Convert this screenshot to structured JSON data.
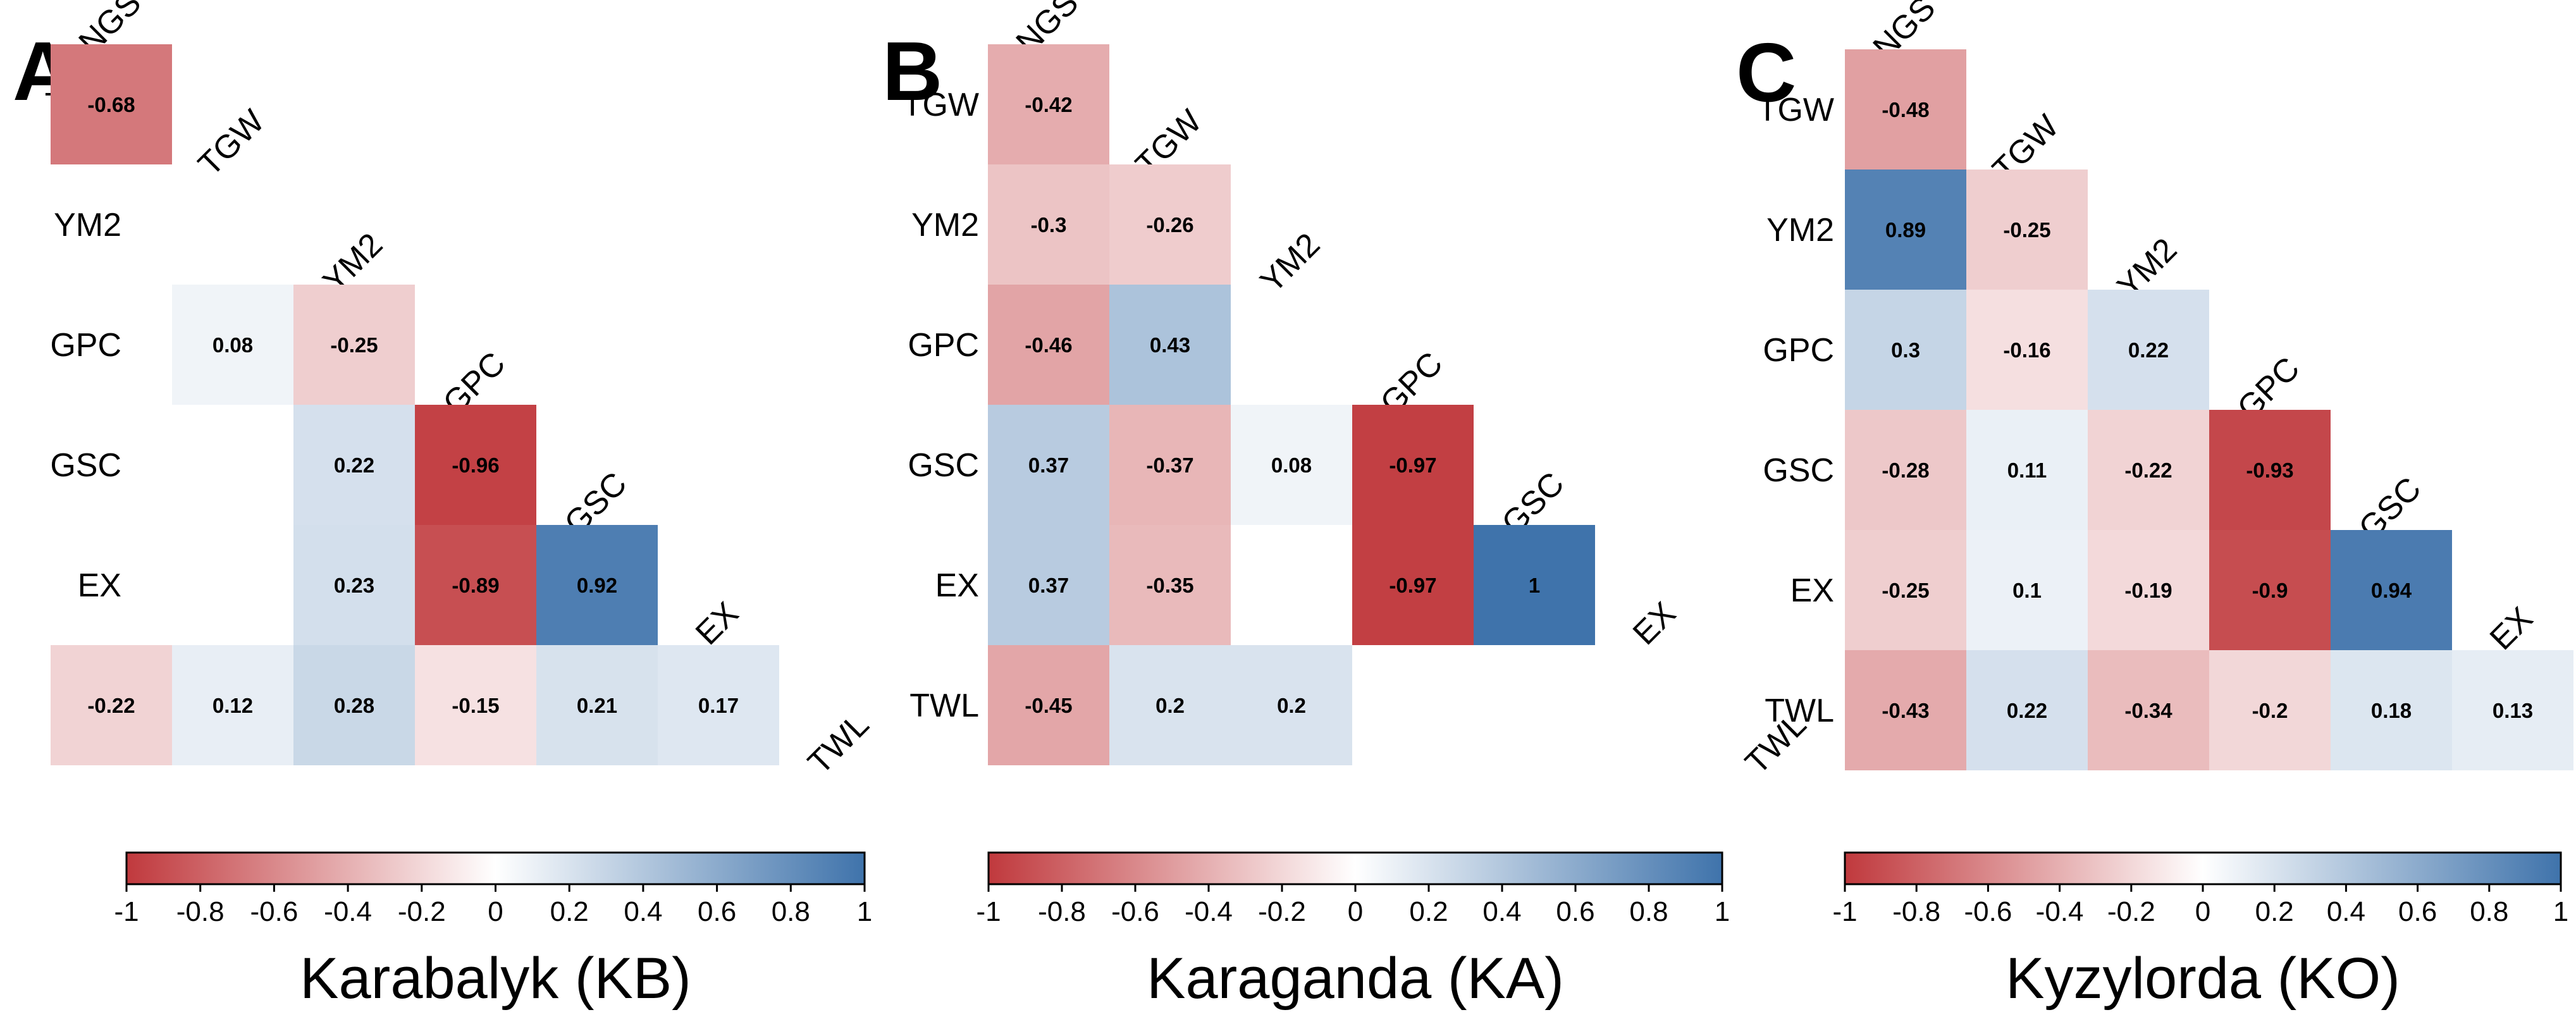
{
  "chart_data": [
    {
      "type": "heatmap",
      "panel_label": "A",
      "title": "Karabalyk (KB)",
      "variables": [
        "NGS",
        "TGW",
        "YM2",
        "GPC",
        "GSC",
        "EX",
        "TWL"
      ],
      "cells": [
        {
          "row": "TGW",
          "col": "NGS",
          "value": -0.68
        },
        {
          "row": "GPC",
          "col": "TGW",
          "value": 0.08
        },
        {
          "row": "GPC",
          "col": "YM2",
          "value": -0.25
        },
        {
          "row": "GSC",
          "col": "YM2",
          "value": 0.22
        },
        {
          "row": "GSC",
          "col": "GPC",
          "value": -0.96
        },
        {
          "row": "EX",
          "col": "YM2",
          "value": 0.23
        },
        {
          "row": "EX",
          "col": "GPC",
          "value": -0.89
        },
        {
          "row": "EX",
          "col": "GSC",
          "value": 0.92
        },
        {
          "row": "TWL",
          "col": "NGS",
          "value": -0.22
        },
        {
          "row": "TWL",
          "col": "TGW",
          "value": 0.12
        },
        {
          "row": "TWL",
          "col": "YM2",
          "value": 0.28
        },
        {
          "row": "TWL",
          "col": "GPC",
          "value": -0.15
        },
        {
          "row": "TWL",
          "col": "GSC",
          "value": 0.21
        },
        {
          "row": "TWL",
          "col": "EX",
          "value": 0.17
        }
      ]
    },
    {
      "type": "heatmap",
      "panel_label": "B",
      "title": "Karaganda (KA)",
      "variables": [
        "NGS",
        "TGW",
        "YM2",
        "GPC",
        "GSC",
        "EX",
        "TWL"
      ],
      "cells": [
        {
          "row": "TGW",
          "col": "NGS",
          "value": -0.42
        },
        {
          "row": "YM2",
          "col": "NGS",
          "value": -0.3
        },
        {
          "row": "YM2",
          "col": "TGW",
          "value": -0.26
        },
        {
          "row": "GPC",
          "col": "NGS",
          "value": -0.46
        },
        {
          "row": "GPC",
          "col": "TGW",
          "value": 0.43
        },
        {
          "row": "GSC",
          "col": "NGS",
          "value": 0.37
        },
        {
          "row": "GSC",
          "col": "TGW",
          "value": -0.37
        },
        {
          "row": "GSC",
          "col": "YM2",
          "value": 0.08
        },
        {
          "row": "GSC",
          "col": "GPC",
          "value": -0.97
        },
        {
          "row": "EX",
          "col": "NGS",
          "value": 0.37
        },
        {
          "row": "EX",
          "col": "TGW",
          "value": -0.35
        },
        {
          "row": "EX",
          "col": "GPC",
          "value": -0.97
        },
        {
          "row": "EX",
          "col": "GSC",
          "value": 1
        },
        {
          "row": "TWL",
          "col": "NGS",
          "value": -0.45
        },
        {
          "row": "TWL",
          "col": "TGW",
          "value": 0.2
        },
        {
          "row": "TWL",
          "col": "YM2",
          "value": 0.2
        }
      ]
    },
    {
      "type": "heatmap",
      "panel_label": "C",
      "title": "Kyzylorda (KO)",
      "variables": [
        "NGS",
        "TGW",
        "YM2",
        "GPC",
        "GSC",
        "EX",
        "TWL"
      ],
      "cells": [
        {
          "row": "TGW",
          "col": "NGS",
          "value": -0.48
        },
        {
          "row": "YM2",
          "col": "NGS",
          "value": 0.89
        },
        {
          "row": "YM2",
          "col": "TGW",
          "value": -0.25
        },
        {
          "row": "GPC",
          "col": "NGS",
          "value": 0.3
        },
        {
          "row": "GPC",
          "col": "TGW",
          "value": -0.16
        },
        {
          "row": "GPC",
          "col": "YM2",
          "value": 0.22
        },
        {
          "row": "GSC",
          "col": "NGS",
          "value": -0.28
        },
        {
          "row": "GSC",
          "col": "TGW",
          "value": 0.11
        },
        {
          "row": "GSC",
          "col": "YM2",
          "value": -0.22
        },
        {
          "row": "GSC",
          "col": "GPC",
          "value": -0.93
        },
        {
          "row": "EX",
          "col": "NGS",
          "value": -0.25
        },
        {
          "row": "EX",
          "col": "TGW",
          "value": 0.1
        },
        {
          "row": "EX",
          "col": "YM2",
          "value": -0.19
        },
        {
          "row": "EX",
          "col": "GPC",
          "value": -0.9
        },
        {
          "row": "EX",
          "col": "GSC",
          "value": 0.94
        },
        {
          "row": "TWL",
          "col": "NGS",
          "value": -0.43
        },
        {
          "row": "TWL",
          "col": "TGW",
          "value": 0.22
        },
        {
          "row": "TWL",
          "col": "YM2",
          "value": -0.34
        },
        {
          "row": "TWL",
          "col": "GPC",
          "value": -0.2
        },
        {
          "row": "TWL",
          "col": "GSC",
          "value": 0.18
        },
        {
          "row": "TWL",
          "col": "EX",
          "value": 0.13
        }
      ]
    }
  ],
  "colorbar": {
    "range": [
      -1,
      1
    ],
    "ticks": [
      "-1",
      "-0.8",
      "-0.6",
      "-0.4",
      "-0.2",
      "0",
      "0.2",
      "0.4",
      "0.6",
      "0.8",
      "1"
    ],
    "colors": {
      "negative_end": "#c0393d",
      "middle": "#ffffff",
      "positive_end": "#3f73ab"
    }
  }
}
